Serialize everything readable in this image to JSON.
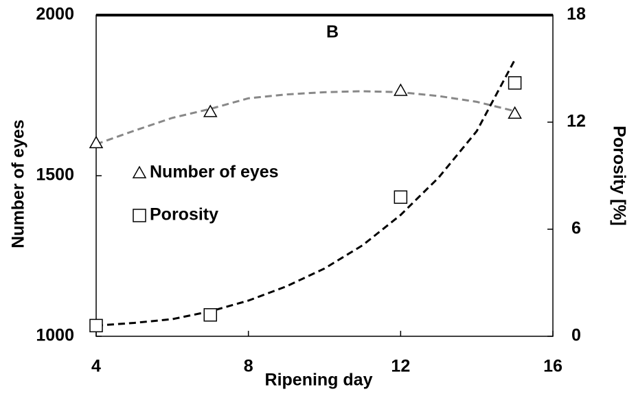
{
  "chart_data": {
    "type": "scatter",
    "title": "B",
    "x_label": "Ripening day",
    "y_label": "Number of eyes",
    "y2_label": "Porosity [%]",
    "x": [
      4,
      7,
      12,
      15
    ],
    "xlim": [
      4,
      16
    ],
    "xticks": [
      4,
      8,
      12,
      16
    ],
    "ylim": [
      1000,
      2000
    ],
    "yticks": [
      1000,
      1500,
      2000
    ],
    "y2lim": [
      0,
      18
    ],
    "y2ticks": [
      0,
      6,
      12,
      18
    ],
    "legend": "center-left",
    "series": [
      {
        "name": "Number of eyes",
        "marker": "triangle",
        "color": "#000000",
        "trend_color": "#888888",
        "values": [
          1602,
          1699,
          1765,
          1694
        ],
        "trend_x": [
          4,
          5,
          6,
          7,
          8,
          9,
          10,
          11,
          12,
          13,
          14,
          15
        ],
        "trend_values": [
          1598,
          1640,
          1680,
          1708,
          1741,
          1753,
          1760,
          1763,
          1760,
          1748,
          1730,
          1701
        ]
      },
      {
        "name": "Porosity",
        "marker": "square",
        "axis": "y2",
        "color": "#000000",
        "trend_color": "#000000",
        "values": [
          0.6,
          1.2,
          7.8,
          14.2
        ],
        "trend_x": [
          4,
          5,
          6,
          7,
          8,
          9,
          10,
          11,
          12,
          13,
          14,
          15
        ],
        "trend_values": [
          0.6,
          0.75,
          0.96,
          1.4,
          2.0,
          2.8,
          3.8,
          5.1,
          6.8,
          8.9,
          11.5,
          15.5
        ]
      }
    ]
  }
}
